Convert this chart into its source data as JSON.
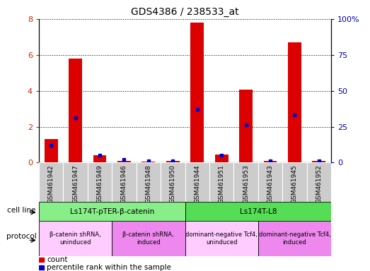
{
  "title": "GDS4386 / 238533_at",
  "samples": [
    "GSM461942",
    "GSM461947",
    "GSM461949",
    "GSM461946",
    "GSM461948",
    "GSM461950",
    "GSM461944",
    "GSM461951",
    "GSM461953",
    "GSM461943",
    "GSM461945",
    "GSM461952"
  ],
  "counts": [
    1.3,
    5.8,
    0.4,
    0.1,
    0.05,
    0.1,
    7.8,
    0.45,
    4.05,
    0.1,
    6.7,
    0.1
  ],
  "percentile": [
    12,
    31,
    5,
    2,
    1,
    1,
    37,
    5,
    26,
    1,
    33,
    1
  ],
  "ylim_left": [
    0,
    8
  ],
  "ylim_right": [
    0,
    100
  ],
  "yticks_left": [
    0,
    2,
    4,
    6,
    8
  ],
  "ytick_labels_right": [
    "0",
    "25",
    "50",
    "75",
    "100%"
  ],
  "yticks_right": [
    0,
    25,
    50,
    75,
    100
  ],
  "bar_color": "#dd0000",
  "dot_color": "#0000cc",
  "bg_color": "#ffffff",
  "sample_bg_color": "#cccccc",
  "cell_line_groups": [
    {
      "label": "Ls174T-pTER-β-catenin",
      "start": 0,
      "end": 6,
      "color": "#88ee88"
    },
    {
      "label": "Ls174T-L8",
      "start": 6,
      "end": 12,
      "color": "#55dd55"
    }
  ],
  "protocol_groups": [
    {
      "label": "β-catenin shRNA,\nuninduced",
      "start": 0,
      "end": 3,
      "color": "#ffccff"
    },
    {
      "label": "β-catenin shRNA,\ninduced",
      "start": 3,
      "end": 6,
      "color": "#ee88ee"
    },
    {
      "label": "dominant-negative Tcf4,\nuninduced",
      "start": 6,
      "end": 9,
      "color": "#ffccff"
    },
    {
      "label": "dominant-negative Tcf4,\ninduced",
      "start": 9,
      "end": 12,
      "color": "#ee88ee"
    }
  ],
  "cell_line_label": "cell line",
  "protocol_label": "protocol",
  "legend_count": "count",
  "legend_percentile": "percentile rank within the sample",
  "bar_width": 0.55
}
